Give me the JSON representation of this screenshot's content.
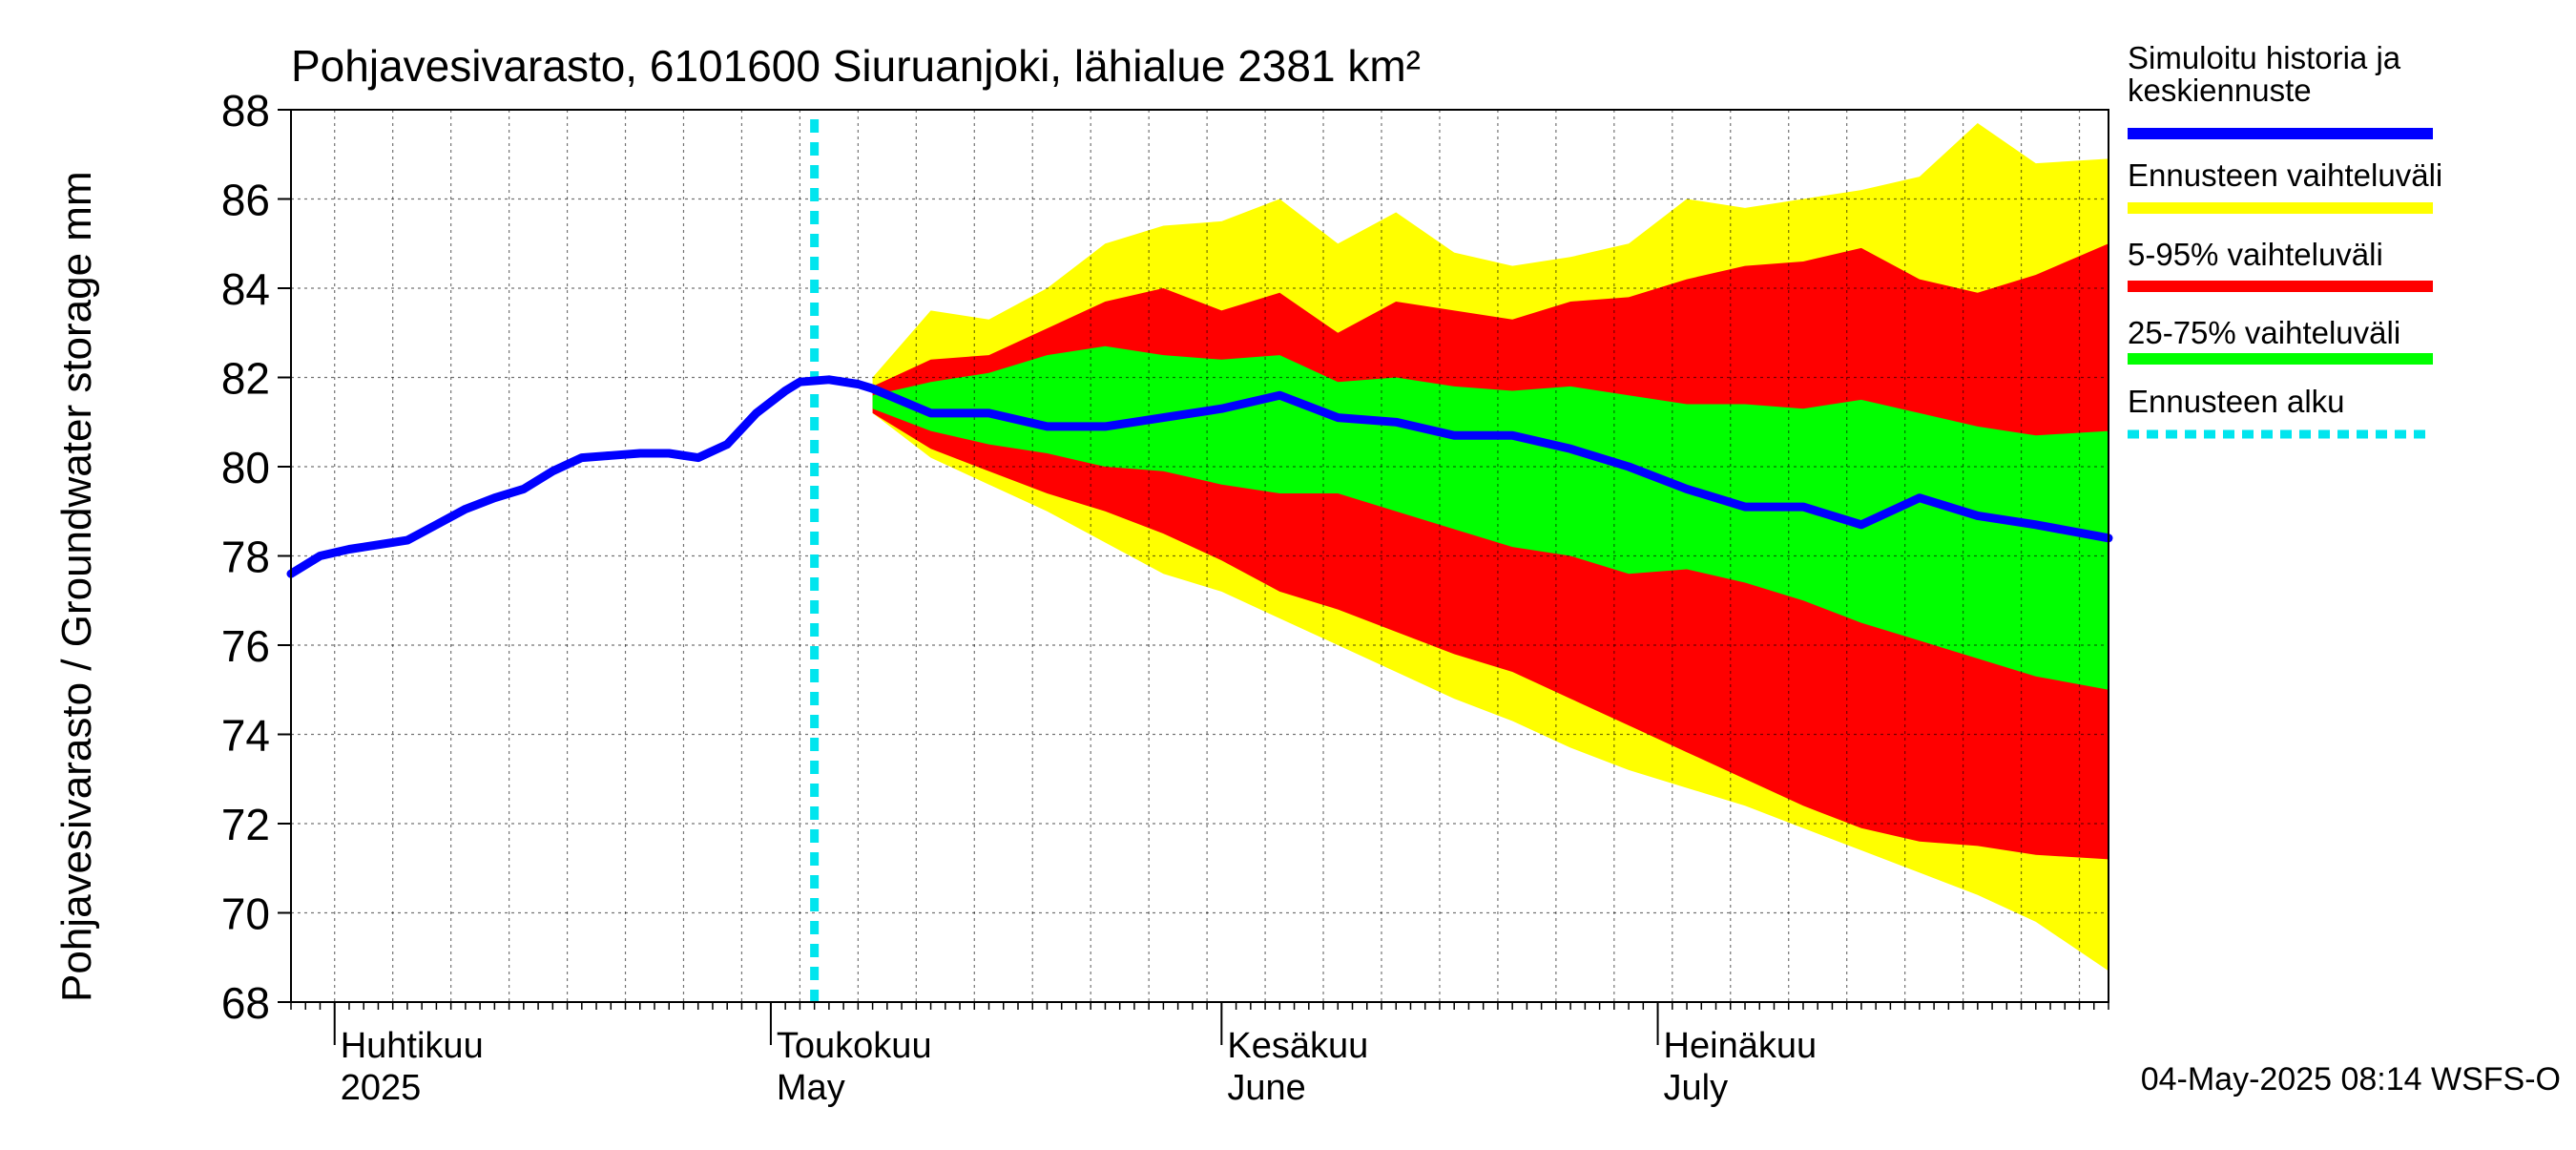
{
  "chart_data": {
    "type": "area",
    "title": "Pohjavesivarasto, 6101600 Siuruanjoki, lähialue 2381 km²",
    "ylabel": "Pohjavesivarasto / Groundwater storage   mm",
    "ylim": [
      68,
      88
    ],
    "yticks": [
      68,
      70,
      72,
      74,
      76,
      78,
      80,
      82,
      84,
      86,
      88
    ],
    "xlim": [
      "2025-03-29",
      "2025-08-01"
    ],
    "grid": true,
    "legend_position": "right",
    "month_labels": [
      {
        "date": "2025-04-01",
        "fi": "Huhtikuu",
        "en": "2025"
      },
      {
        "date": "2025-05-01",
        "fi": "Toukokuu",
        "en": "May"
      },
      {
        "date": "2025-06-01",
        "fi": "Kesäkuu",
        "en": "June"
      },
      {
        "date": "2025-07-01",
        "fi": "Heinäkuu",
        "en": "July"
      }
    ],
    "forecast_start": "2025-05-04",
    "colors": {
      "history": "#0000ff",
      "range_full": "#ffff00",
      "range_5_95": "#ff0000",
      "range_25_75": "#00ff00",
      "forecast_start": "#00e5ee"
    },
    "legend": [
      {
        "key": "history",
        "label_line1": "Simuloitu historia ja",
        "label_line2": "keskiennuste"
      },
      {
        "key": "range_full",
        "label_line1": "Ennusteen vaihteluväli",
        "label_line2": ""
      },
      {
        "key": "range_5_95",
        "label_line1": "5-95% vaihteluväli",
        "label_line2": ""
      },
      {
        "key": "range_25_75",
        "label_line1": "25-75% vaihteluväli",
        "label_line2": ""
      },
      {
        "key": "forecast_start",
        "label_line1": "Ennusteen alku",
        "label_line2": ""
      }
    ],
    "history_series": {
      "x": [
        "2025-03-29",
        "2025-03-31",
        "2025-04-02",
        "2025-04-04",
        "2025-04-06",
        "2025-04-08",
        "2025-04-10",
        "2025-04-12",
        "2025-04-14",
        "2025-04-16",
        "2025-04-18",
        "2025-04-20",
        "2025-04-22",
        "2025-04-24",
        "2025-04-26",
        "2025-04-28",
        "2025-04-30",
        "2025-05-02",
        "2025-05-03",
        "2025-05-05",
        "2025-05-07",
        "2025-05-08"
      ],
      "y": [
        77.6,
        78.0,
        78.15,
        78.25,
        78.35,
        78.7,
        79.05,
        79.3,
        79.5,
        79.9,
        80.2,
        80.25,
        80.3,
        80.3,
        80.2,
        80.5,
        81.2,
        81.7,
        81.9,
        81.95,
        81.85,
        81.75
      ]
    },
    "forecast_bands": {
      "x": [
        "2025-05-08",
        "2025-05-12",
        "2025-05-16",
        "2025-05-20",
        "2025-05-24",
        "2025-05-28",
        "2025-06-01",
        "2025-06-05",
        "2025-06-09",
        "2025-06-13",
        "2025-06-17",
        "2025-06-21",
        "2025-06-25",
        "2025-06-29",
        "2025-07-03",
        "2025-07-07",
        "2025-07-11",
        "2025-07-15",
        "2025-07-19",
        "2025-07-23",
        "2025-07-27",
        "2025-08-01"
      ],
      "full_high": [
        82.0,
        83.5,
        83.3,
        84.0,
        85.0,
        85.4,
        85.5,
        86.0,
        85.0,
        85.7,
        84.8,
        84.5,
        84.7,
        85.0,
        86.0,
        85.8,
        86.0,
        86.2,
        86.5,
        87.7,
        86.8,
        86.9
      ],
      "p95": [
        81.8,
        82.4,
        82.5,
        83.1,
        83.7,
        84.0,
        83.5,
        83.9,
        83.0,
        83.7,
        83.5,
        83.3,
        83.7,
        83.8,
        84.2,
        84.5,
        84.6,
        84.9,
        84.2,
        83.9,
        84.3,
        85.0
      ],
      "p75": [
        81.6,
        81.9,
        82.1,
        82.5,
        82.7,
        82.5,
        82.4,
        82.5,
        81.9,
        82.0,
        81.8,
        81.7,
        81.8,
        81.6,
        81.4,
        81.4,
        81.3,
        81.5,
        81.2,
        80.9,
        80.7,
        80.8
      ],
      "p25": [
        81.3,
        80.8,
        80.5,
        80.3,
        80.0,
        79.9,
        79.6,
        79.4,
        79.4,
        79.0,
        78.6,
        78.2,
        78.0,
        77.6,
        77.7,
        77.4,
        77.0,
        76.5,
        76.1,
        75.7,
        75.3,
        75.0
      ],
      "p5": [
        81.2,
        80.4,
        79.9,
        79.4,
        79.0,
        78.5,
        77.9,
        77.2,
        76.8,
        76.3,
        75.8,
        75.4,
        74.8,
        74.2,
        73.6,
        73.0,
        72.4,
        71.9,
        71.6,
        71.5,
        71.3,
        71.2
      ],
      "full_low": [
        81.2,
        80.2,
        79.6,
        79.0,
        78.3,
        77.6,
        77.2,
        76.6,
        76.0,
        75.4,
        74.8,
        74.3,
        73.7,
        73.2,
        72.8,
        72.4,
        71.9,
        71.4,
        70.9,
        70.4,
        69.8,
        68.7
      ],
      "mean": [
        81.7,
        81.2,
        81.2,
        80.9,
        80.9,
        81.1,
        81.3,
        81.6,
        81.1,
        81.0,
        80.7,
        80.7,
        80.4,
        80.0,
        79.5,
        79.1,
        79.1,
        78.7,
        79.3,
        78.9,
        78.7,
        78.4
      ]
    }
  },
  "footer": {
    "timestamp": "04-May-2025 08:14 WSFS-O"
  }
}
